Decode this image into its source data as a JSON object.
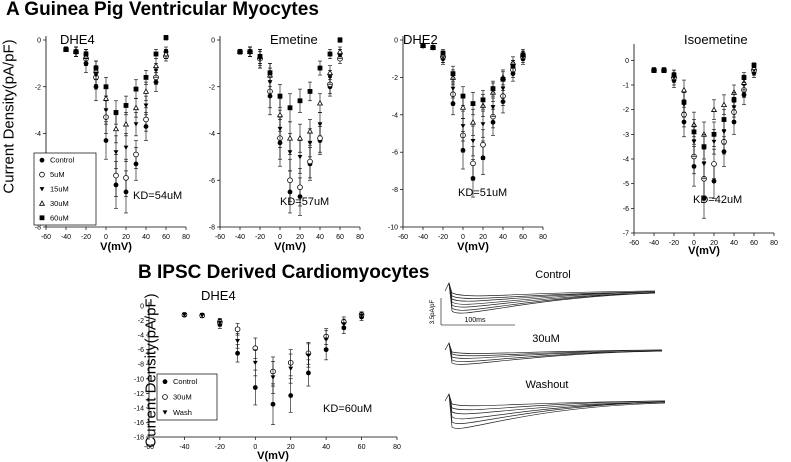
{
  "headings": {
    "section_a": "A  Guinea Pig Ventricular Myocytes",
    "section_b": "B  IPSC Derived Cardiomyocytes"
  },
  "y_axis_label": "Current Density(pA/pF)",
  "legend_a": [
    "Control",
    "5uM",
    "15uM",
    "30uM",
    "60uM"
  ],
  "legend_b": [
    "Control",
    "30uM",
    "Wash"
  ],
  "traces": {
    "labels": [
      "Control",
      "30uM",
      "Washout"
    ],
    "scale_y": "3.5pA/pF",
    "scale_x": "100ms"
  },
  "chart_data": [
    {
      "type": "scatter",
      "title": "DHE4",
      "xlabel": "V(mV)",
      "ylabel": "Current Density(pA/pF)",
      "annotation": "KD=54uM",
      "xlim": [
        -60,
        80
      ],
      "ylim": [
        -8,
        0
      ],
      "xticks": [
        -60,
        -40,
        -20,
        0,
        20,
        40,
        60,
        80
      ],
      "yticks": [
        0,
        -2,
        -4,
        -6,
        -8
      ],
      "x": [
        -40,
        -30,
        -20,
        -10,
        0,
        10,
        20,
        30,
        40,
        50,
        60
      ],
      "series": [
        {
          "name": "Control",
          "marker": "filled-circle",
          "values": [
            -0.4,
            -0.5,
            -1.0,
            -2.0,
            -4.3,
            -6.2,
            -6.5,
            -5.3,
            -3.7,
            -1.8,
            -0.5
          ],
          "errors": [
            0.1,
            0.2,
            0.4,
            0.6,
            0.8,
            1.0,
            0.9,
            0.7,
            0.6,
            0.4,
            0.2
          ]
        },
        {
          "name": "5uM",
          "marker": "open-circle",
          "values": [
            -0.4,
            -0.5,
            -0.8,
            -1.6,
            -3.3,
            -5.8,
            -5.9,
            -4.9,
            -3.4,
            -1.6,
            -0.7
          ],
          "errors": [
            0.1,
            0.2,
            0.3,
            0.5,
            0.7,
            0.9,
            0.8,
            0.6,
            0.5,
            0.3,
            0.2
          ]
        },
        {
          "name": "15uM",
          "marker": "filled-triangle-down",
          "values": [
            -0.4,
            -0.5,
            -0.7,
            -1.5,
            -3.0,
            -4.8,
            -4.6,
            -3.6,
            -2.8,
            -1.3,
            -0.6
          ],
          "errors": [
            0.1,
            0.2,
            0.3,
            0.4,
            0.6,
            0.7,
            0.6,
            0.5,
            0.4,
            0.3,
            0.2
          ]
        },
        {
          "name": "30uM",
          "marker": "open-triangle-up",
          "values": [
            -0.4,
            -0.5,
            -0.7,
            -1.3,
            -2.5,
            -3.8,
            -3.6,
            -2.9,
            -2.2,
            -1.1,
            -0.6
          ],
          "errors": [
            0.1,
            0.2,
            0.3,
            0.4,
            0.5,
            0.6,
            0.5,
            0.4,
            0.4,
            0.3,
            0.2
          ]
        },
        {
          "name": "60uM",
          "marker": "filled-square",
          "values": [
            -0.4,
            -0.5,
            -0.6,
            -1.2,
            -2.0,
            -3.1,
            -2.8,
            -2.1,
            -1.6,
            -0.6,
            0.1
          ],
          "errors": [
            0.1,
            0.2,
            0.2,
            0.3,
            0.4,
            0.5,
            0.4,
            0.4,
            0.3,
            0.2,
            0.1
          ]
        }
      ]
    },
    {
      "type": "scatter",
      "title": "Emetine",
      "xlabel": "V(mV)",
      "annotation": "KD=57uM",
      "xlim": [
        -60,
        80
      ],
      "ylim": [
        -8,
        0
      ],
      "xticks": [
        -60,
        -40,
        -20,
        0,
        20,
        40,
        60,
        80
      ],
      "yticks": [
        0,
        -2,
        -4,
        -6,
        -8
      ],
      "x": [
        -40,
        -30,
        -20,
        -10,
        0,
        10,
        20,
        30,
        40,
        50,
        60
      ],
      "series": [
        {
          "name": "Control",
          "marker": "filled-circle",
          "values": [
            -0.5,
            -0.5,
            -0.8,
            -2.4,
            -4.4,
            -6.5,
            -6.7,
            -5.3,
            -4.3,
            -2.0,
            -0.6
          ],
          "errors": [
            0.1,
            0.2,
            0.4,
            0.8,
            1.0,
            0.9,
            0.8,
            0.7,
            0.6,
            0.4,
            0.2
          ]
        },
        {
          "name": "5uM",
          "marker": "open-circle",
          "values": [
            -0.5,
            -0.5,
            -0.8,
            -2.2,
            -4.2,
            -6.0,
            -6.3,
            -5.2,
            -4.2,
            -1.9,
            -0.8
          ],
          "errors": [
            0.1,
            0.2,
            0.4,
            0.7,
            0.9,
            0.9,
            0.8,
            0.7,
            0.6,
            0.4,
            0.2
          ]
        },
        {
          "name": "15uM",
          "marker": "filled-triangle-down",
          "values": [
            -0.5,
            -0.5,
            -0.8,
            -1.8,
            -3.8,
            -4.8,
            -5.0,
            -4.4,
            -3.6,
            -1.6,
            -0.6
          ],
          "errors": [
            0.1,
            0.2,
            0.3,
            0.6,
            0.8,
            0.8,
            0.7,
            0.6,
            0.5,
            0.3,
            0.2
          ]
        },
        {
          "name": "30uM",
          "marker": "open-triangle-up",
          "values": [
            -0.5,
            -0.5,
            -0.7,
            -1.5,
            -3.2,
            -4.2,
            -4.2,
            -3.9,
            -2.7,
            -1.4,
            -0.5
          ],
          "errors": [
            0.1,
            0.2,
            0.3,
            0.5,
            0.7,
            0.7,
            0.6,
            0.5,
            0.4,
            0.3,
            0.2
          ]
        },
        {
          "name": "60uM",
          "marker": "filled-square",
          "values": [
            -0.5,
            -0.5,
            -0.7,
            -1.4,
            -2.4,
            -2.9,
            -2.6,
            -2.2,
            -1.2,
            -0.6,
            0.0
          ],
          "errors": [
            0.1,
            0.2,
            0.3,
            0.4,
            0.5,
            0.6,
            0.5,
            0.4,
            0.3,
            0.2,
            0.1
          ]
        }
      ]
    },
    {
      "type": "scatter",
      "title": "DHE2",
      "xlabel": "V(mV)",
      "annotation": "KD=51uM",
      "xlim": [
        -60,
        80
      ],
      "ylim": [
        -10,
        0
      ],
      "xticks": [
        -60,
        -40,
        -20,
        0,
        20,
        40,
        60,
        80
      ],
      "yticks": [
        0,
        -2,
        -4,
        -6,
        -8,
        -10
      ],
      "x": [
        -40,
        -30,
        -20,
        -10,
        0,
        10,
        20,
        30,
        40,
        50,
        60
      ],
      "series": [
        {
          "name": "Control",
          "marker": "filled-circle",
          "values": [
            -0.3,
            -0.4,
            -1.0,
            -3.4,
            -5.9,
            -7.4,
            -6.3,
            -4.4,
            -3.3,
            -1.8,
            -1.0
          ],
          "errors": [
            0.1,
            0.1,
            0.3,
            0.6,
            1.0,
            1.0,
            0.9,
            0.7,
            0.6,
            0.4,
            0.3
          ]
        },
        {
          "name": "5uM",
          "marker": "open-circle",
          "values": [
            -0.3,
            -0.4,
            -0.9,
            -2.9,
            -5.1,
            -6.6,
            -5.6,
            -4.1,
            -3.0,
            -1.6,
            -0.9
          ],
          "errors": [
            0.1,
            0.1,
            0.3,
            0.6,
            0.9,
            0.9,
            0.8,
            0.6,
            0.5,
            0.4,
            0.3
          ]
        },
        {
          "name": "15uM",
          "marker": "filled-triangle-down",
          "values": [
            -0.3,
            -0.4,
            -0.9,
            -2.6,
            -4.6,
            -5.4,
            -4.5,
            -3.6,
            -2.6,
            -1.4,
            -0.9
          ],
          "errors": [
            0.1,
            0.1,
            0.3,
            0.5,
            0.8,
            0.8,
            0.7,
            0.5,
            0.5,
            0.3,
            0.2
          ]
        },
        {
          "name": "30uM",
          "marker": "open-triangle-up",
          "values": [
            -0.3,
            -0.4,
            -0.8,
            -2.0,
            -3.6,
            -4.4,
            -3.5,
            -2.8,
            -2.0,
            -1.2,
            -0.7
          ],
          "errors": [
            0.1,
            0.1,
            0.2,
            0.4,
            0.6,
            0.7,
            0.6,
            0.5,
            0.4,
            0.3,
            0.2
          ]
        },
        {
          "name": "60uM",
          "marker": "filled-square",
          "values": [
            -0.3,
            -0.4,
            -0.7,
            -1.8,
            -3.0,
            -3.4,
            -3.2,
            -2.6,
            -2.1,
            -1.4,
            -0.8
          ],
          "errors": [
            0.1,
            0.1,
            0.2,
            0.4,
            0.5,
            0.6,
            0.5,
            0.4,
            0.4,
            0.3,
            0.2
          ]
        }
      ]
    },
    {
      "type": "scatter",
      "title": "Isoemetine",
      "xlabel": "V(mV)",
      "annotation": "KD=42uM",
      "xlim": [
        -60,
        80
      ],
      "ylim": [
        -7,
        0.5
      ],
      "xticks": [
        -60,
        -40,
        -20,
        0,
        20,
        40,
        60,
        80
      ],
      "yticks": [
        0,
        -1,
        -2,
        -3,
        -4,
        -5,
        -6,
        -7
      ],
      "x": [
        -40,
        -30,
        -20,
        -10,
        0,
        10,
        20,
        30,
        40,
        50,
        60
      ],
      "series": [
        {
          "name": "Control",
          "marker": "filled-circle",
          "values": [
            -0.4,
            -0.4,
            -0.8,
            -2.5,
            -4.3,
            -5.6,
            -4.9,
            -3.7,
            -2.5,
            -1.4,
            -0.5
          ],
          "errors": [
            0.1,
            0.1,
            0.3,
            0.6,
            0.8,
            0.8,
            0.7,
            0.6,
            0.5,
            0.4,
            0.2
          ]
        },
        {
          "name": "5uM",
          "marker": "open-circle",
          "values": [
            -0.4,
            -0.4,
            -0.7,
            -2.2,
            -3.9,
            -4.8,
            -4.2,
            -3.3,
            -2.1,
            -1.2,
            -0.4
          ],
          "errors": [
            0.1,
            0.1,
            0.3,
            0.5,
            0.7,
            0.7,
            0.6,
            0.5,
            0.4,
            0.3,
            0.2
          ]
        },
        {
          "name": "15uM",
          "marker": "filled-triangle-down",
          "values": [
            -0.4,
            -0.4,
            -0.7,
            -1.8,
            -3.3,
            -4.2,
            -3.3,
            -2.9,
            -1.9,
            -1.0,
            -0.4
          ],
          "errors": [
            0.1,
            0.1,
            0.2,
            0.5,
            0.6,
            0.6,
            0.5,
            0.5,
            0.4,
            0.3,
            0.2
          ]
        },
        {
          "name": "30uM",
          "marker": "open-triangle-up",
          "values": [
            -0.4,
            -0.4,
            -0.6,
            -1.2,
            -2.6,
            -3.0,
            -2.0,
            -1.8,
            -1.3,
            -0.9,
            -0.3
          ],
          "errors": [
            0.1,
            0.1,
            0.2,
            0.4,
            0.5,
            0.5,
            0.4,
            0.4,
            0.3,
            0.3,
            0.2
          ]
        },
        {
          "name": "60uM",
          "marker": "filled-square",
          "values": [
            -0.4,
            -0.4,
            -0.6,
            -1.7,
            -2.9,
            -3.5,
            -3.0,
            -2.4,
            -1.6,
            -0.7,
            -0.2
          ],
          "errors": [
            0.1,
            0.1,
            0.2,
            0.4,
            0.5,
            0.5,
            0.5,
            0.4,
            0.3,
            0.2,
            0.1
          ]
        }
      ]
    },
    {
      "type": "scatter",
      "title": "DHE4",
      "xlabel": "V(mV)",
      "ylabel": "Current Density(pA/pF)",
      "annotation": "KD=60uM",
      "xlim": [
        -60,
        80
      ],
      "ylim": [
        -18,
        0
      ],
      "xticks": [
        -60,
        -40,
        -20,
        0,
        20,
        40,
        60,
        80
      ],
      "yticks": [
        0,
        -2,
        -4,
        -6,
        -8,
        -10,
        -12,
        -14,
        -16,
        -18
      ],
      "x": [
        -40,
        -30,
        -20,
        -10,
        0,
        10,
        20,
        30,
        40,
        50,
        60
      ],
      "series": [
        {
          "name": "Control",
          "marker": "filled-circle",
          "values": [
            -1.2,
            -1.3,
            -2.5,
            -6.5,
            -11.2,
            -13.5,
            -12.3,
            -9.2,
            -6.0,
            -3.0,
            -1.5
          ],
          "errors": [
            0.2,
            0.3,
            0.6,
            1.2,
            2.4,
            2.8,
            2.3,
            1.8,
            1.4,
            0.8,
            0.5
          ]
        },
        {
          "name": "30uM",
          "marker": "open-circle",
          "values": [
            -1.2,
            -1.3,
            -2.2,
            -3.2,
            -5.8,
            -9.0,
            -7.8,
            -6.5,
            -4.2,
            -2.2,
            -1.2
          ],
          "errors": [
            0.2,
            0.3,
            0.5,
            0.8,
            1.4,
            2.0,
            1.8,
            1.5,
            1.1,
            0.7,
            0.4
          ]
        },
        {
          "name": "Wash",
          "marker": "filled-triangle-down",
          "values": [
            -1.2,
            -1.3,
            -2.3,
            -4.8,
            -7.8,
            -9.8,
            -8.6,
            -6.8,
            -4.6,
            -2.5,
            -1.3
          ],
          "errors": [
            0.2,
            0.3,
            0.5,
            1.0,
            1.8,
            2.2,
            2.0,
            1.6,
            1.2,
            0.7,
            0.4
          ]
        }
      ]
    }
  ]
}
